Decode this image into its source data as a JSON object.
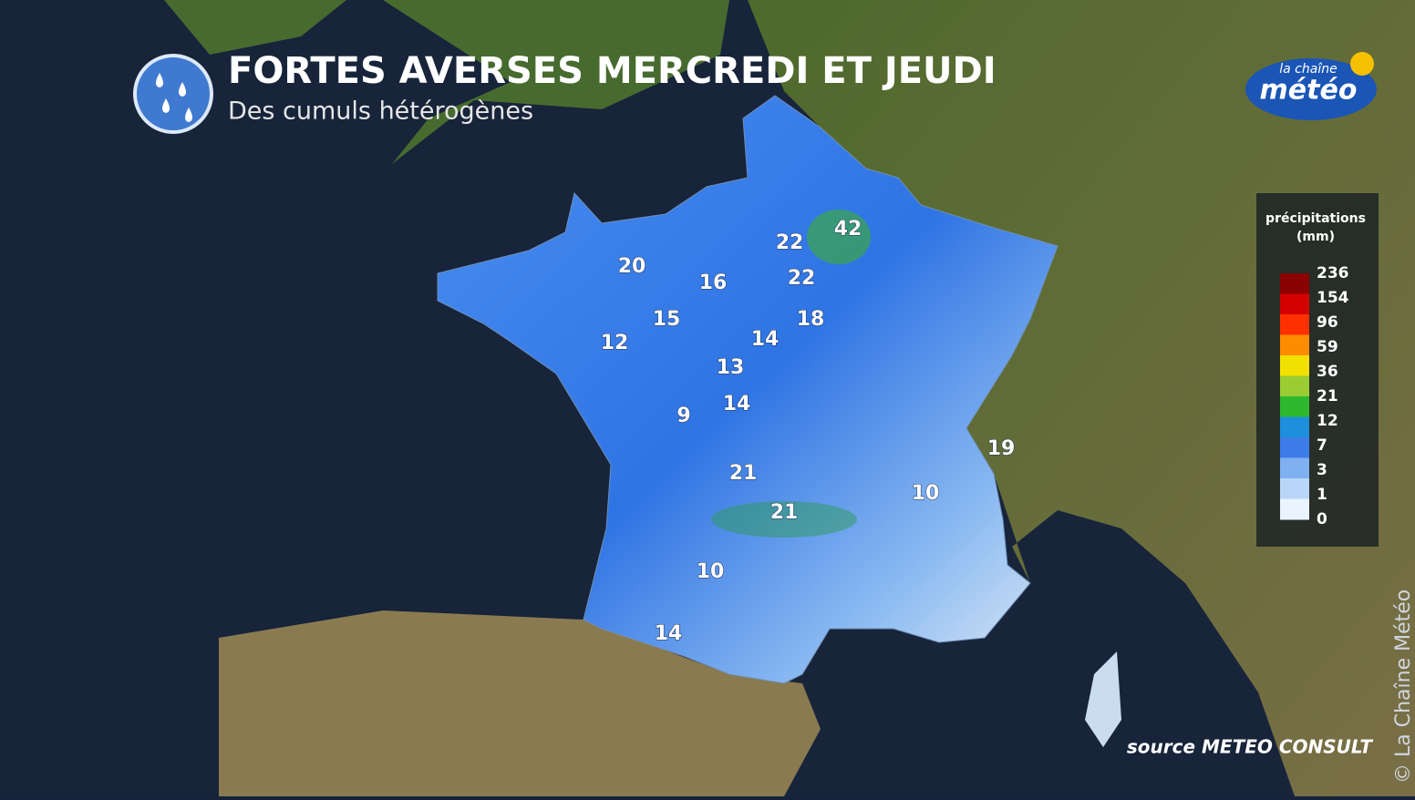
{
  "header": {
    "title": "FORTES AVERSES MERCREDI ET JEUDI",
    "subtitle": "Des cumuls hétérogènes"
  },
  "logo": {
    "top": "la chaîne",
    "bottom": "météo"
  },
  "legend": {
    "title": "précipitations",
    "unit": "(mm)",
    "labels": [
      236,
      154,
      96,
      59,
      36,
      21,
      12,
      7,
      3,
      1,
      0
    ],
    "colors": [
      "#8b0000",
      "#d40000",
      "#ff3000",
      "#ff8c00",
      "#f2e000",
      "#9acd32",
      "#2eb82e",
      "#1e8fdc",
      "#3d7be8",
      "#7fb0f0",
      "#b8d6f8",
      "#eaf4ff"
    ]
  },
  "map_labels": [
    42,
    22,
    20,
    16,
    22,
    15,
    18,
    12,
    14,
    13,
    14,
    9,
    19,
    21,
    10,
    21,
    10,
    14
  ],
  "source": "source METEO CONSULT",
  "copyright": "© La Chaîne Météo"
}
